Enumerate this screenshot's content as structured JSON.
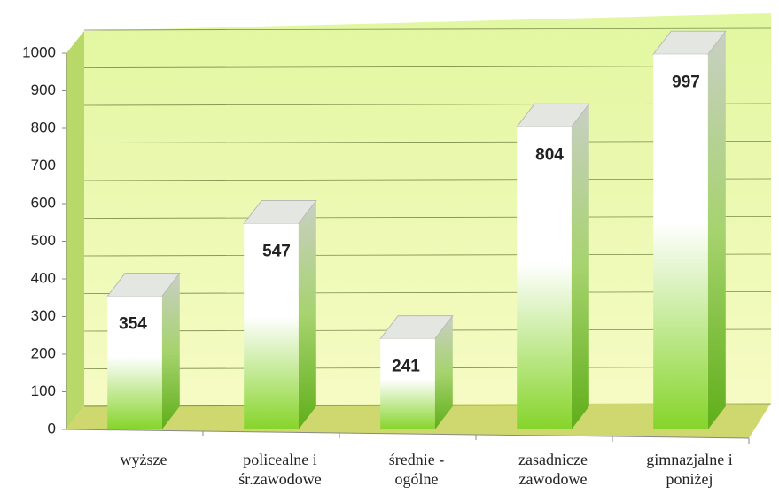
{
  "chart_data": {
    "type": "bar",
    "categories": [
      "wyższe",
      "policealne i\nśr.zawodowe",
      "średnie -\nogólne",
      "zasadnicze\nzawodowe",
      "gimnazjalne i\nponiżej"
    ],
    "values": [
      354,
      547,
      241,
      804,
      997
    ],
    "color": "#7ccd2a",
    "ylim": [
      0,
      1000
    ],
    "yticks": [
      0,
      100,
      200,
      300,
      400,
      500,
      600,
      700,
      800,
      900,
      1000
    ],
    "grid": true
  }
}
